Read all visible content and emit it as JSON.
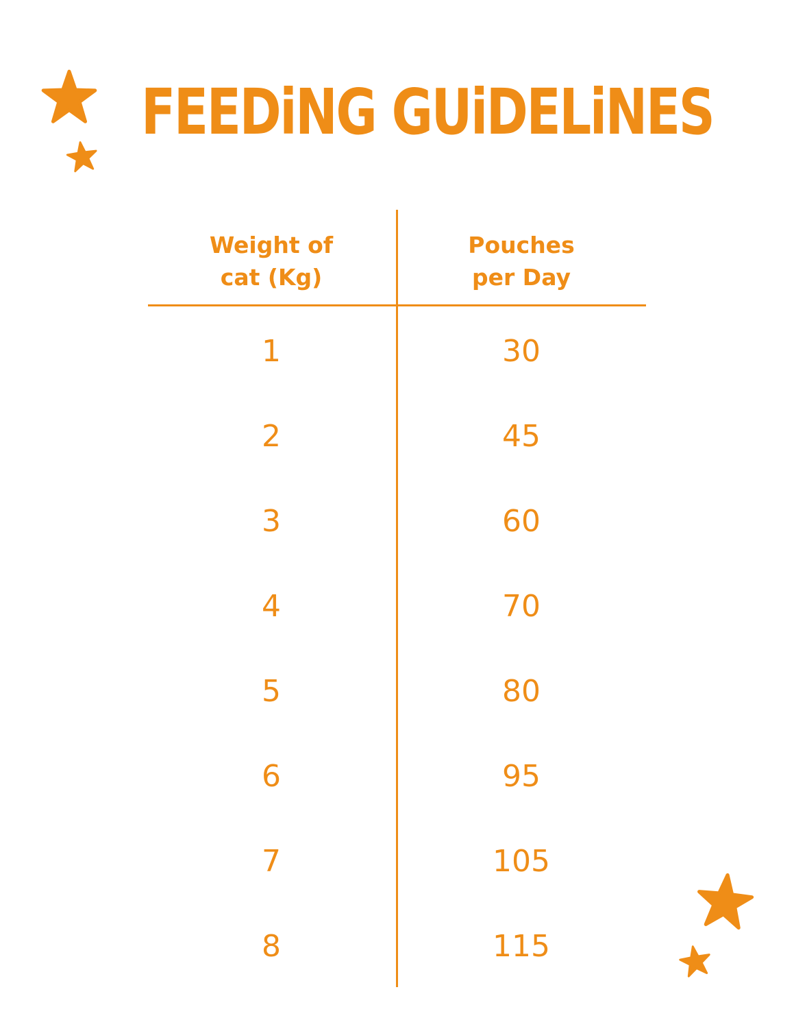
{
  "title": "FEEDiNG GUiDELiNES",
  "accent_color": "#ef8d17",
  "decorations": [
    "star-icon",
    "star-icon",
    "star-icon",
    "star-icon"
  ],
  "table": {
    "headers": {
      "weight": [
        "Weight of",
        "cat (Kg)"
      ],
      "pouches": [
        "Pouches",
        "per Day"
      ]
    },
    "rows": [
      {
        "weight": "1",
        "pouches": "30"
      },
      {
        "weight": "2",
        "pouches": "45"
      },
      {
        "weight": "3",
        "pouches": "60"
      },
      {
        "weight": "4",
        "pouches": "70"
      },
      {
        "weight": "5",
        "pouches": "80"
      },
      {
        "weight": "6",
        "pouches": "95"
      },
      {
        "weight": "7",
        "pouches": "105"
      },
      {
        "weight": "8",
        "pouches": "115"
      }
    ]
  }
}
